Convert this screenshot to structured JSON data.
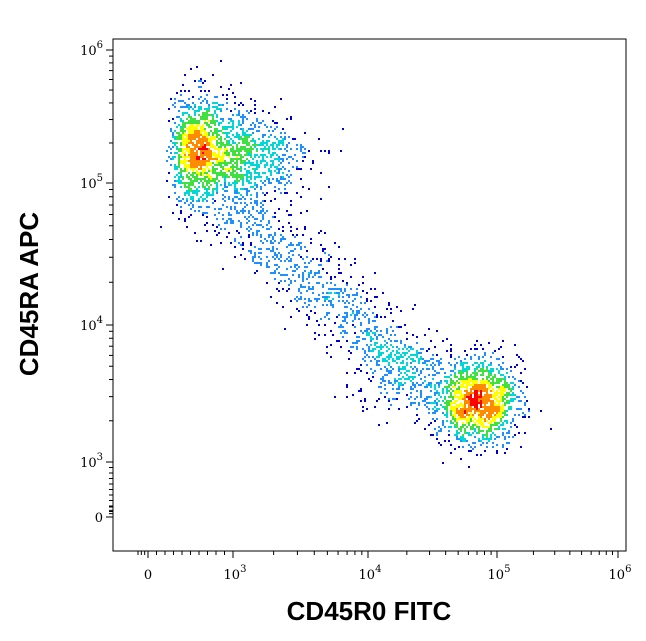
{
  "chart_data": {
    "type": "scatter",
    "xlabel": "CD45R0 FITC",
    "ylabel": "CD45RA APC",
    "x_scale": "biexponential",
    "y_scale": "biexponential",
    "xlim": [
      -300,
      1000000
    ],
    "ylim": [
      -300,
      1000000
    ],
    "x_ticks": [
      {
        "value": 0,
        "base": "0",
        "exp": ""
      },
      {
        "value": 1000,
        "base": "10",
        "exp": "3"
      },
      {
        "value": 10000,
        "base": "10",
        "exp": "4"
      },
      {
        "value": 100000,
        "base": "10",
        "exp": "5"
      },
      {
        "value": 1000000,
        "base": "10",
        "exp": "6"
      }
    ],
    "y_ticks": [
      {
        "value": 0,
        "base": "0",
        "exp": ""
      },
      {
        "value": 1000,
        "base": "10",
        "exp": "3"
      },
      {
        "value": 10000,
        "base": "10",
        "exp": "4"
      },
      {
        "value": 100000,
        "base": "10",
        "exp": "5"
      },
      {
        "value": 1000000,
        "base": "10",
        "exp": "6"
      }
    ],
    "grid": false,
    "color_scale": [
      "#0000cc",
      "#1e90ff",
      "#00d8d8",
      "#40e040",
      "#ffff00",
      "#ff8c00",
      "#ff0000"
    ],
    "populations": [
      {
        "center_x": 650,
        "center_y": 180000,
        "spread_x_decades": 0.17,
        "spread_y_decades": 0.2,
        "events": 1500
      },
      {
        "center_x": 1500,
        "center_y": 150000,
        "spread_x_decades": 0.2,
        "spread_y_decades": 0.17,
        "events": 500
      },
      {
        "center_x": 70000,
        "center_y": 2800,
        "spread_x_decades": 0.16,
        "spread_y_decades": 0.15,
        "events": 1500
      },
      {
        "center_x": 22000,
        "center_y": 4500,
        "spread_x_decades": 0.22,
        "spread_y_decades": 0.14,
        "events": 300
      },
      {
        "from_x": 800,
        "from_y": 80000,
        "to_x": 20000,
        "to_y": 5000,
        "spread_decades": 0.13,
        "events": 900,
        "kind": "bridge"
      }
    ]
  }
}
